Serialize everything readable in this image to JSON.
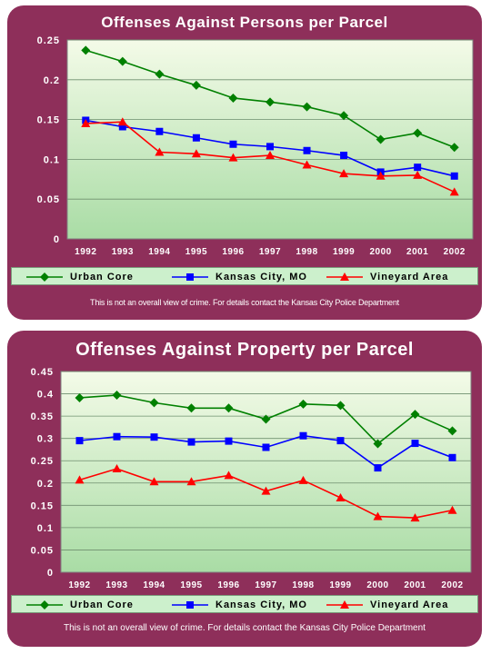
{
  "charts": [
    {
      "title": "Offenses Against Persons per Parcel",
      "footnote": "This is not an overall view of crime. For details contact the Kansas City Police Department",
      "legend": [
        "Urban Core",
        "Kansas City, MO",
        "Vineyard Area"
      ]
    },
    {
      "title": "Offenses Against Property per Parcel",
      "footnote": "This is not an overall view of crime. For details contact the Kansas City Police Department",
      "legend": [
        "Urban Core",
        "Kansas City, MO",
        "Vineyard Area"
      ]
    }
  ],
  "colors": {
    "panel": "#8e2f5a",
    "urban_core": "#008000",
    "kansas_city": "#0000ff",
    "vineyard": "#ff0000",
    "plot_top": "#f4fbe8",
    "plot_bottom": "#a9dca5"
  },
  "chart_data": [
    {
      "type": "line",
      "title": "Offenses Against Persons per Parcel",
      "xlabel": "",
      "ylabel": "",
      "categories": [
        "1992",
        "1993",
        "1994",
        "1995",
        "1996",
        "1997",
        "1998",
        "1999",
        "2000",
        "2001",
        "2002"
      ],
      "y_ticks": [
        "0",
        "0.05",
        "0.1",
        "0.15",
        "0.2",
        "0.25"
      ],
      "ylim": [
        0,
        0.25
      ],
      "grid": true,
      "legend_position": "bottom",
      "series": [
        {
          "name": "Urban Core",
          "marker": "diamond",
          "values": [
            0.237,
            0.223,
            0.207,
            0.193,
            0.177,
            0.172,
            0.166,
            0.155,
            0.125,
            0.133,
            0.115
          ]
        },
        {
          "name": "Kansas City, MO",
          "marker": "square",
          "values": [
            0.149,
            0.141,
            0.135,
            0.127,
            0.119,
            0.116,
            0.111,
            0.105,
            0.084,
            0.09,
            0.079
          ]
        },
        {
          "name": "Vineyard Area",
          "marker": "triangle",
          "values": [
            0.145,
            0.147,
            0.109,
            0.107,
            0.102,
            0.105,
            0.093,
            0.082,
            0.079,
            0.08,
            0.059
          ]
        }
      ]
    },
    {
      "type": "line",
      "title": "Offenses Against Property per Parcel",
      "xlabel": "",
      "ylabel": "",
      "categories": [
        "1992",
        "1993",
        "1994",
        "1995",
        "1996",
        "1997",
        "1998",
        "1999",
        "2000",
        "2001",
        "2002"
      ],
      "y_ticks": [
        "0",
        "0.05",
        "0.1",
        "0.15",
        "0.2",
        "0.25",
        "0.3",
        "0.35",
        "0.4",
        "0.45"
      ],
      "ylim": [
        0,
        0.45
      ],
      "grid": true,
      "legend_position": "bottom",
      "series": [
        {
          "name": "Urban Core",
          "marker": "diamond",
          "values": [
            0.391,
            0.397,
            0.38,
            0.368,
            0.368,
            0.343,
            0.377,
            0.374,
            0.288,
            0.354,
            0.317
          ]
        },
        {
          "name": "Kansas City, MO",
          "marker": "square",
          "values": [
            0.295,
            0.304,
            0.303,
            0.292,
            0.294,
            0.28,
            0.306,
            0.295,
            0.234,
            0.289,
            0.257
          ]
        },
        {
          "name": "Vineyard Area",
          "marker": "triangle",
          "values": [
            0.207,
            0.232,
            0.203,
            0.203,
            0.217,
            0.182,
            0.206,
            0.167,
            0.125,
            0.122,
            0.139
          ]
        }
      ]
    }
  ]
}
